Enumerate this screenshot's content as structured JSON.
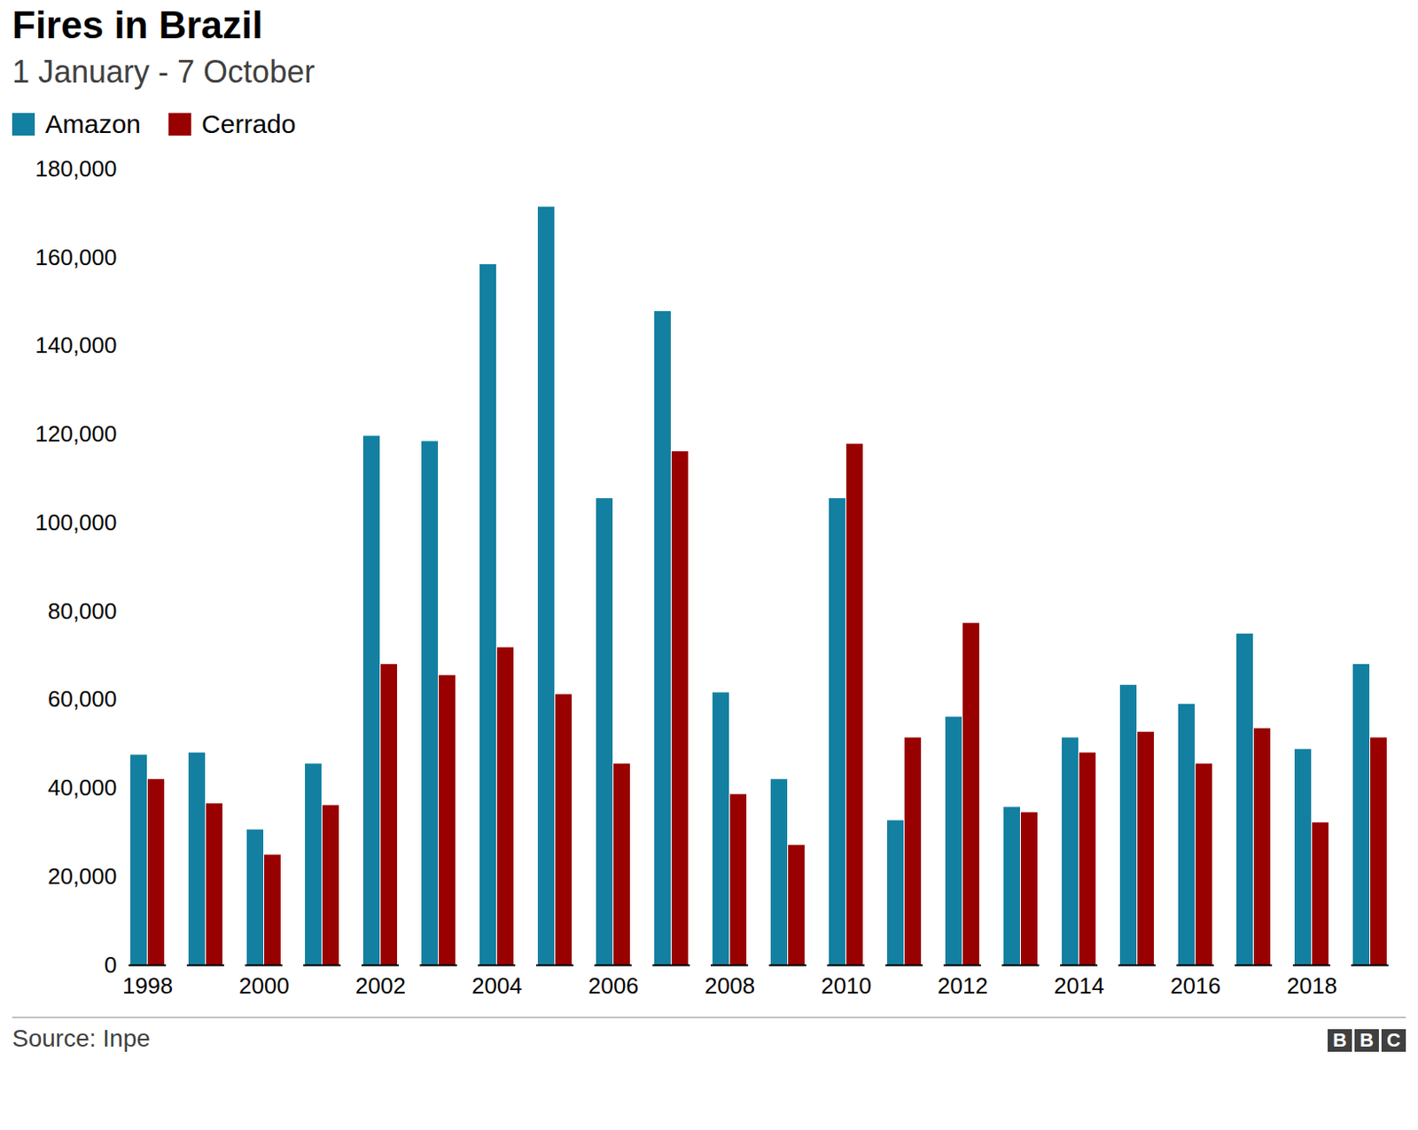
{
  "chart_data": {
    "type": "bar",
    "title": "Fires in Brazil",
    "subtitle": "1 January - 7 October",
    "source": "Source: Inpe",
    "logo": "BBC",
    "categories": [
      "1998",
      null,
      "2000",
      null,
      "2002",
      null,
      "2004",
      null,
      "2006",
      null,
      "2008",
      null,
      "2010",
      null,
      "2012",
      null,
      "2014",
      null,
      "2016",
      null,
      "2018",
      null
    ],
    "series": [
      {
        "name": "Amazon",
        "color": "#1380a1",
        "values": [
          47500,
          48000,
          30600,
          45500,
          119600,
          118400,
          158400,
          171400,
          105500,
          147800,
          61600,
          42000,
          105500,
          32700,
          56100,
          35700,
          51400,
          63300,
          59000,
          74900,
          48800,
          68000
        ]
      },
      {
        "name": "Cerrado",
        "color": "#990000",
        "values": [
          42000,
          36500,
          24900,
          36100,
          68000,
          65500,
          71800,
          61200,
          45500,
          116100,
          38600,
          27100,
          117800,
          51400,
          77300,
          34500,
          48000,
          52700,
          45500,
          53500,
          32200,
          51400
        ]
      }
    ],
    "ylim": [
      0,
      180000
    ],
    "yticks": [
      0,
      {
        "value": 20000,
        "label": "20,000"
      },
      {
        "value": 40000,
        "label": "40,000"
      },
      {
        "value": 60000,
        "label": "60,000"
      },
      {
        "value": 80000,
        "label": "80,000"
      },
      {
        "value": 100000,
        "label": "100,000"
      },
      {
        "value": 120000,
        "label": "120,000"
      },
      {
        "value": 140000,
        "label": "140,000"
      },
      {
        "value": 160000,
        "label": "160,000"
      },
      {
        "value": 180000,
        "label": "180,000"
      }
    ],
    "grid": false,
    "legend": "top-left"
  }
}
